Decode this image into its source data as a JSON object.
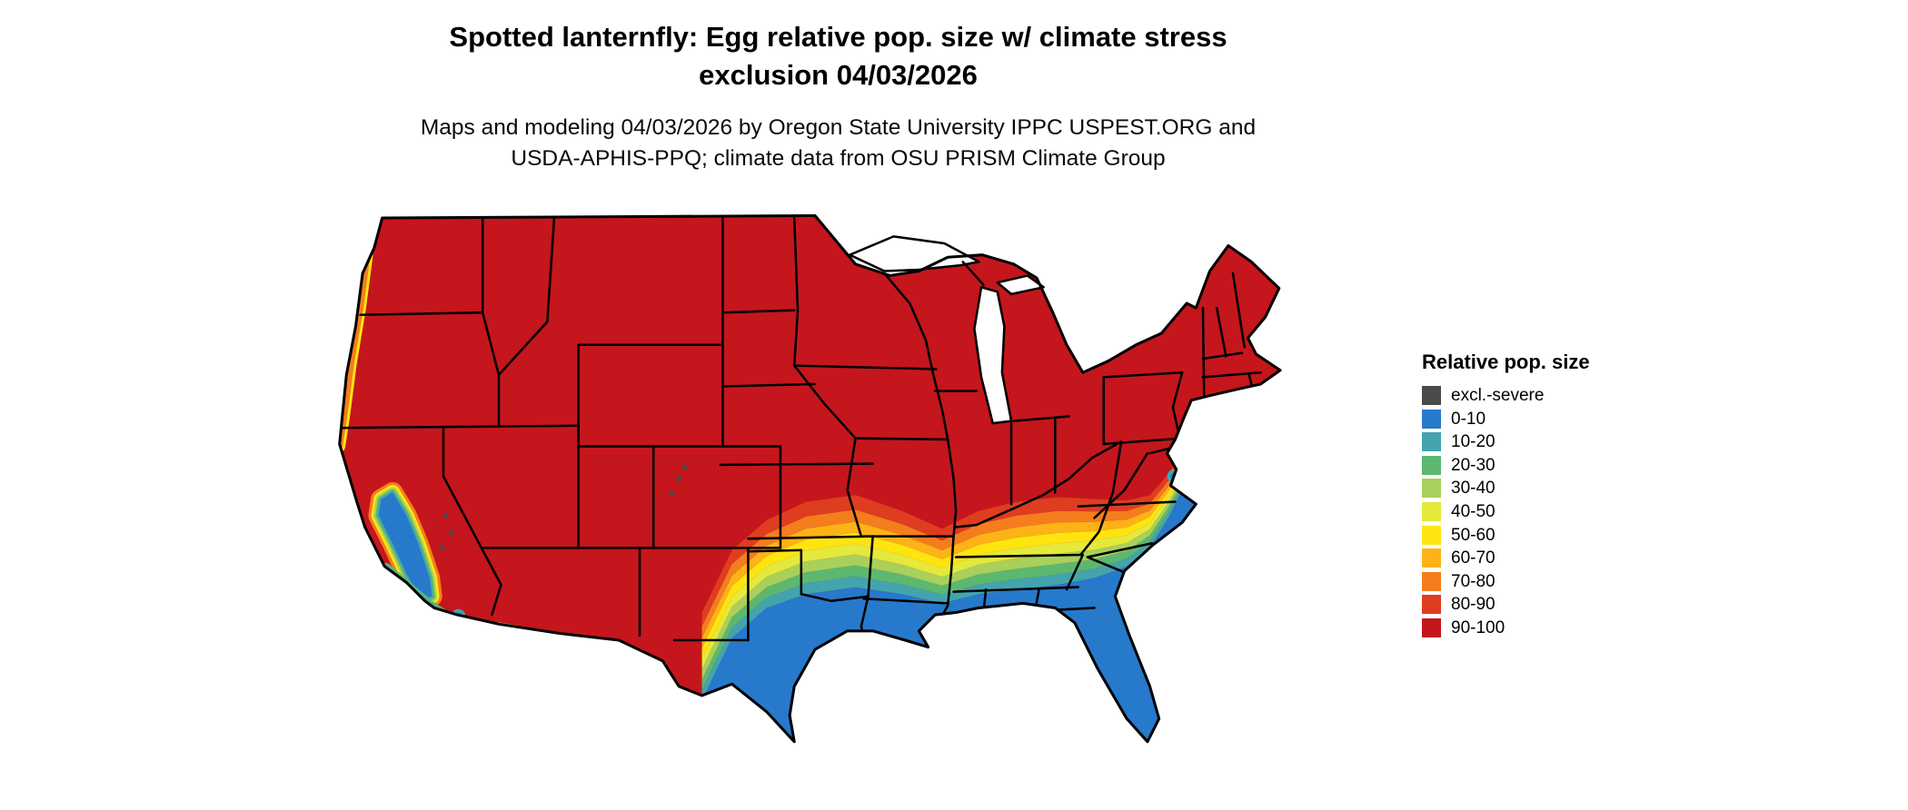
{
  "title": {
    "line1": "Spotted lanternfly: Egg relative pop. size w/ climate stress",
    "line2": "exclusion 04/03/2026"
  },
  "subtitle": {
    "line1": "Maps and modeling 04/03/2026 by Oregon State University IPPC USPEST.ORG and",
    "line2": "USDA-APHIS-PPQ; climate data from OSU PRISM Climate Group"
  },
  "legend": {
    "title": "Relative pop. size",
    "items": [
      {
        "label": "excl.-severe",
        "color": "#4a4a4a"
      },
      {
        "label": "0-10",
        "color": "#2779cb"
      },
      {
        "label": "10-20",
        "color": "#43a4ad"
      },
      {
        "label": "20-30",
        "color": "#5cb86e"
      },
      {
        "label": "30-40",
        "color": "#a8d05a"
      },
      {
        "label": "40-50",
        "color": "#e4e93b"
      },
      {
        "label": "50-60",
        "color": "#ffe510"
      },
      {
        "label": "60-70",
        "color": "#fcb316"
      },
      {
        "label": "70-80",
        "color": "#f47d1e"
      },
      {
        "label": "80-90",
        "color": "#de3d20"
      },
      {
        "label": "90-100",
        "color": "#c4161c"
      }
    ]
  },
  "chart_data": {
    "type": "heatmap",
    "subtype": "choropleth-raster-map",
    "geography": "Contiguous United States with state borders",
    "title": "Spotted lanternfly: Egg relative pop. size w/ climate stress exclusion 04/03/2026",
    "value_classes": [
      "excl.-severe",
      "0-10",
      "10-20",
      "20-30",
      "30-40",
      "40-50",
      "50-60",
      "60-70",
      "70-80",
      "80-90",
      "90-100"
    ],
    "legend_position": "right",
    "pattern_summary": {
      "high_90_100": "entire northern U.S., Great Plains north, Midwest, Northeast, Rockies and interior Southwest down to the Mexico border",
      "transition_bands": "east-west banded gradient (80-90 through 10-20) across mid-Kansas, Oklahoma, Arkansas, Tennessee, northern Alabama/Georgia, reaching the Atlantic near coastal Virginia/North Carolina",
      "low_0_10": "Texas south/east, Gulf Coast states south, all of Florida, southeast coastal plain, central California valley and southern California coast",
      "coastal_fringes": "orange/yellow fringe along Pacific Northwest coast and along the Arizona/New Mexico border"
    }
  }
}
